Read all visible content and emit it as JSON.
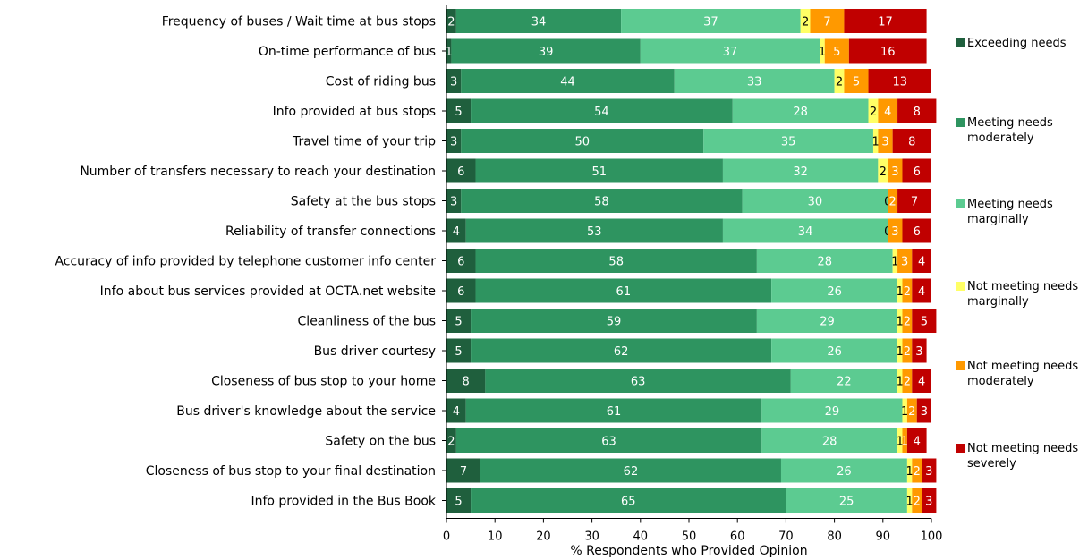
{
  "chart_data": {
    "type": "bar",
    "orientation": "horizontal",
    "stacked": true,
    "xlabel": "% Respondents who Provided Opinion",
    "xlim": [
      0,
      100
    ],
    "xticks": [
      "0",
      "10",
      "20",
      "30",
      "40",
      "50",
      "60",
      "70",
      "80",
      "90",
      "100"
    ],
    "grid": false,
    "legend_position": "right",
    "categories": [
      "Frequency of buses / Wait time at bus stops",
      "On-time performance of bus",
      "Cost of riding bus",
      "Info provided at bus stops",
      "Travel time of your trip",
      "Number of transfers necessary to reach your destination",
      "Safety at the bus stops",
      "Reliability of transfer connections",
      "Accuracy of info provided by telephone customer info center",
      "Info about bus services provided at OCTA.net website",
      "Cleanliness of the bus",
      "Bus driver courtesy",
      "Closeness of bus stop to your home",
      "Bus driver's knowledge about the service",
      "Safety on the bus",
      "Closeness of bus stop to your final destination",
      "Info provided in the Bus Book"
    ],
    "series": [
      {
        "name": "Exceeding needs",
        "color": "#1F5F3D",
        "label_color": "#ffffff",
        "values": [
          2,
          1,
          3,
          5,
          3,
          6,
          3,
          4,
          6,
          6,
          5,
          5,
          8,
          4,
          2,
          7,
          5
        ]
      },
      {
        "name": "Meeting needs moderately",
        "color": "#2E9460",
        "label_color": "#ffffff",
        "values": [
          34,
          39,
          44,
          54,
          50,
          51,
          58,
          53,
          58,
          61,
          59,
          62,
          63,
          61,
          63,
          62,
          65
        ]
      },
      {
        "name": "Meeting needs marginally",
        "color": "#5CCB91",
        "label_color": "#ffffff",
        "values": [
          37,
          37,
          33,
          28,
          35,
          32,
          30,
          34,
          28,
          26,
          29,
          26,
          22,
          29,
          28,
          26,
          25
        ]
      },
      {
        "name": "Not meeting needs marginally",
        "color": "#FFFF66",
        "label_color": "#000000",
        "values": [
          2,
          1,
          2,
          2,
          1,
          2,
          0,
          0,
          1,
          1,
          1,
          1,
          1,
          1,
          1,
          1,
          1
        ]
      },
      {
        "name": "Not meeting needs moderately",
        "color": "#FF9900",
        "label_color": "#ffffff",
        "values": [
          7,
          5,
          5,
          4,
          3,
          3,
          2,
          3,
          3,
          2,
          2,
          2,
          2,
          2,
          1,
          2,
          2
        ]
      },
      {
        "name": "Not meeting needs severely",
        "color": "#C00000",
        "label_color": "#ffffff",
        "values": [
          17,
          16,
          13,
          8,
          8,
          6,
          7,
          6,
          4,
          4,
          5,
          3,
          4,
          3,
          4,
          3,
          3
        ]
      }
    ],
    "legend_lines": [
      [
        "Exceeding needs"
      ],
      [
        "Meeting needs",
        "moderately"
      ],
      [
        "Meeting needs",
        "marginally"
      ],
      [
        "Not meeting needs",
        "marginally"
      ],
      [
        "Not meeting needs",
        "moderately"
      ],
      [
        "Not meeting needs",
        "severely"
      ]
    ]
  }
}
